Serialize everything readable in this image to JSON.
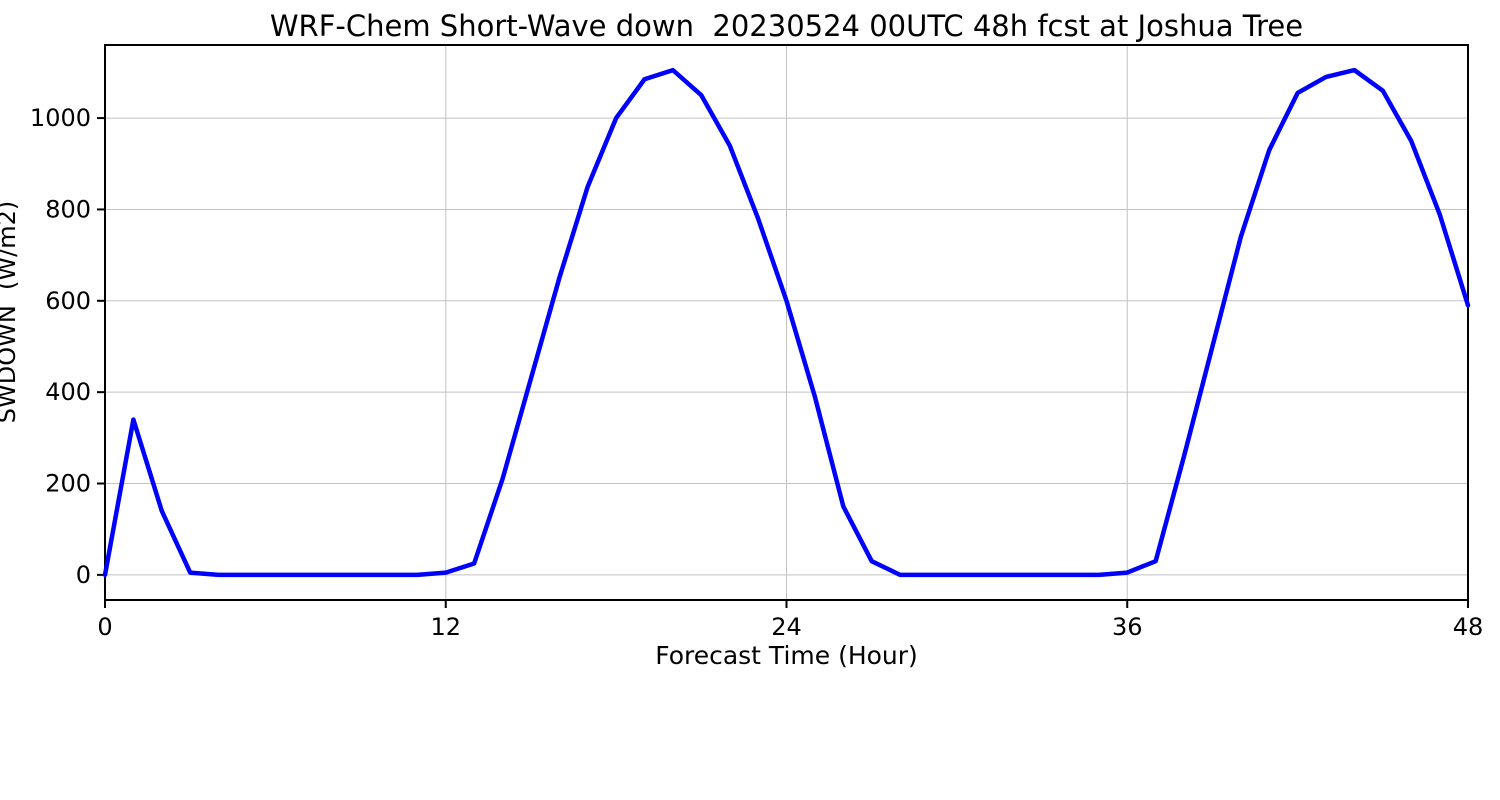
{
  "figure": {
    "background": "#ffffff"
  },
  "chart_data": {
    "type": "line",
    "title": "WRF-Chem Short-Wave down  20230524 00UTC 48h fcst at Joshua Tree",
    "xlabel": "Forecast Time (Hour)",
    "ylabel": "SWDOWN  (W/m2)",
    "x": [
      0,
      1,
      2,
      3,
      4,
      5,
      6,
      7,
      8,
      9,
      10,
      11,
      12,
      13,
      14,
      15,
      16,
      17,
      18,
      19,
      20,
      21,
      22,
      23,
      24,
      25,
      26,
      27,
      28,
      29,
      30,
      31,
      32,
      33,
      34,
      35,
      36,
      37,
      38,
      39,
      40,
      41,
      42,
      43,
      44,
      45,
      46,
      47,
      48
    ],
    "series": [
      {
        "name": "SWDOWN",
        "color": "#0000ff",
        "values": [
          0,
          340,
          140,
          5,
          0,
          0,
          0,
          0,
          0,
          0,
          0,
          0,
          5,
          25,
          210,
          430,
          650,
          850,
          1000,
          1085,
          1105,
          1050,
          940,
          780,
          600,
          390,
          150,
          30,
          0,
          0,
          0,
          0,
          0,
          0,
          0,
          0,
          5,
          30,
          260,
          500,
          740,
          930,
          1055,
          1090,
          1105,
          1060,
          950,
          790,
          590
        ]
      }
    ],
    "xlim": [
      0,
      48
    ],
    "ylim": [
      -55,
      1160
    ],
    "xticks": [
      0,
      12,
      24,
      36,
      48
    ],
    "yticks": [
      0,
      200,
      400,
      600,
      800,
      1000
    ],
    "grid": true,
    "grid_color": "#c2c2c2",
    "axis_color": "#000000",
    "legend": "none"
  }
}
